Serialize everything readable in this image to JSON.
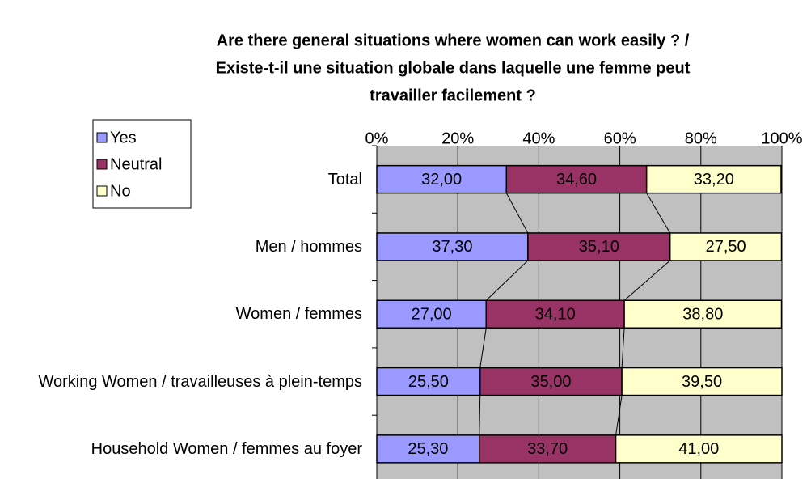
{
  "chart_data": {
    "type": "stacked_bar_horizontal",
    "title": [
      "Are there general situations where women can work easily ? /",
      "Existe-t-il une situation globale dans laquelle une femme peut",
      "travailler facilement ?"
    ],
    "categories": [
      "Total",
      "Men / hommes",
      "Women / femmes",
      "Working Women / travailleuses à plein-temps",
      "Household Women / femmes au foyer"
    ],
    "series": [
      {
        "name": "Yes",
        "color": "#9999ff",
        "values": [
          32.0,
          37.3,
          27.0,
          25.5,
          25.3
        ],
        "value_labels": [
          "32,00",
          "37,30",
          "27,00",
          "25,50",
          "25,30"
        ]
      },
      {
        "name": "Neutral",
        "color": "#993366",
        "values": [
          34.6,
          35.1,
          34.1,
          35.0,
          33.7
        ],
        "value_labels": [
          "34,60",
          "35,10",
          "34,10",
          "35,00",
          "33,70"
        ]
      },
      {
        "name": "No",
        "color": "#ffffcc",
        "values": [
          33.2,
          27.5,
          38.8,
          39.5,
          41.0
        ],
        "value_labels": [
          "33,20",
          "27,50",
          "38,80",
          "39,50",
          "41,00"
        ]
      }
    ],
    "xlim": [
      0,
      100
    ],
    "xticks": [
      {
        "value": 0,
        "label": "0%"
      },
      {
        "value": 20,
        "label": "20%"
      },
      {
        "value": 40,
        "label": "40%"
      },
      {
        "value": 60,
        "label": "60%"
      },
      {
        "value": 80,
        "label": "80%"
      },
      {
        "value": 100,
        "label": "100%"
      }
    ],
    "grid": true,
    "legend": "upper left",
    "plot_background": "#c0c0c0"
  }
}
